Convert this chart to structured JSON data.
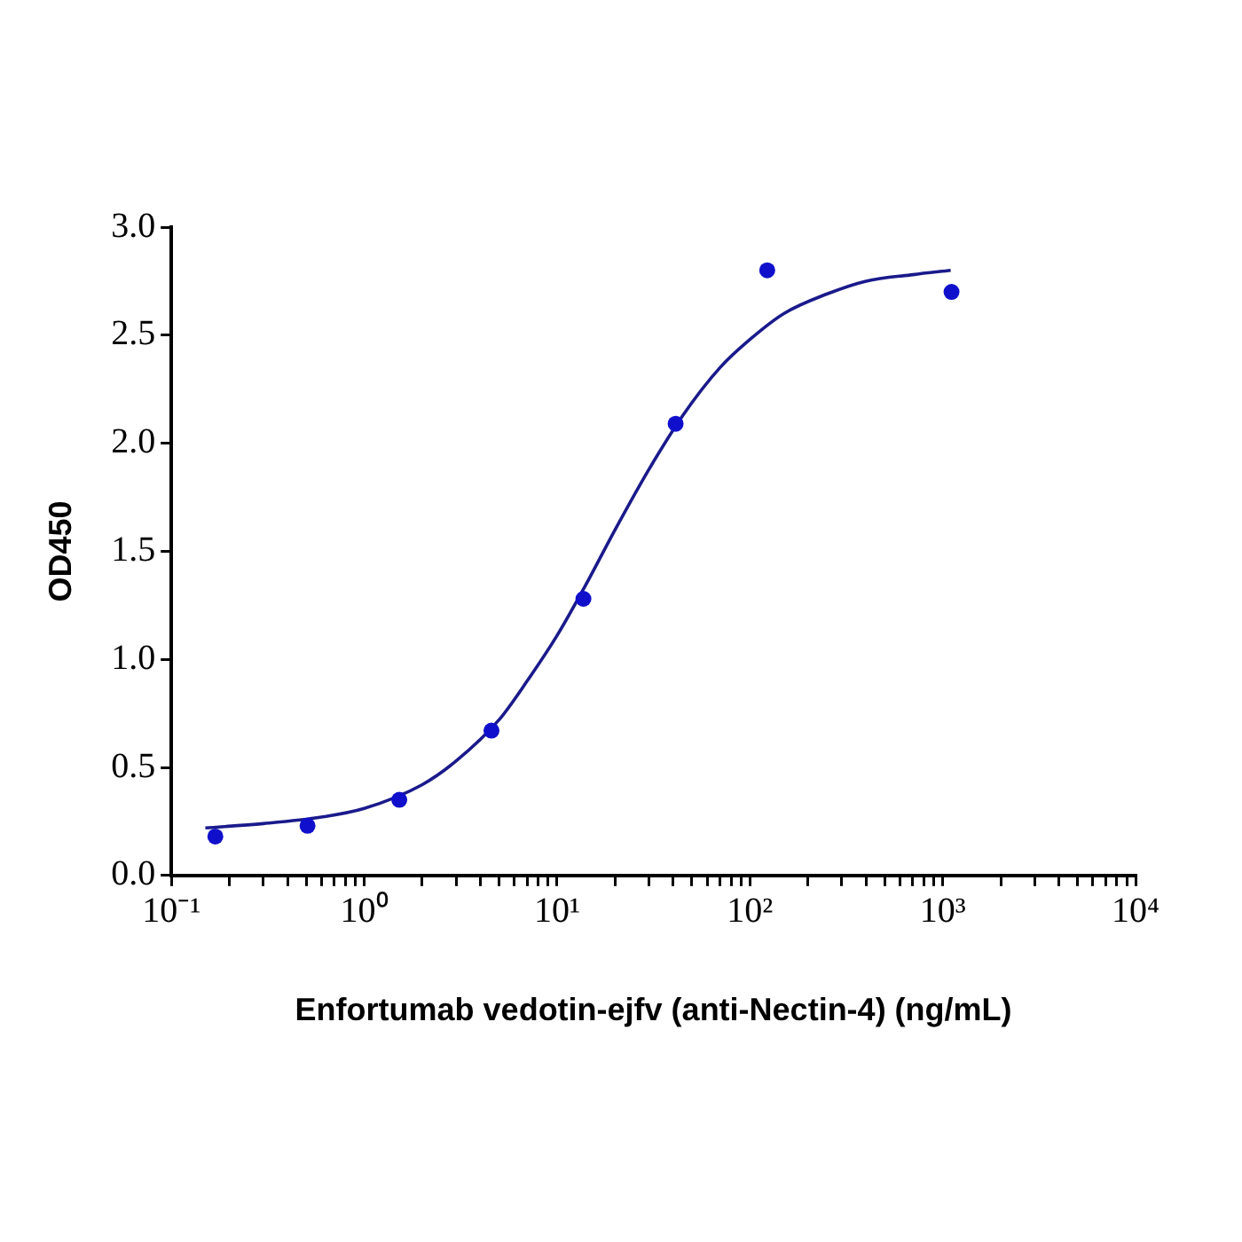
{
  "chart_data": {
    "type": "scatter",
    "xlabel": "Enfortumab vedotin-ejfv (anti-Nectin-4) (ng/mL)",
    "ylabel": "OD450",
    "log": "x",
    "marker": "circle",
    "xlim": [
      0.1,
      10000
    ],
    "xticks": [
      {
        "value": 0.1,
        "label": "10⁻¹"
      },
      {
        "value": 0.2,
        "label": null
      },
      {
        "value": 0.3,
        "label": null
      },
      {
        "value": 0.4,
        "label": null
      },
      {
        "value": 0.5,
        "label": null
      },
      {
        "value": 0.6,
        "label": null
      },
      {
        "value": 0.7,
        "label": null
      },
      {
        "value": 0.8,
        "label": null
      },
      {
        "value": 0.9,
        "label": null
      },
      {
        "value": 1,
        "label": "10⁰"
      },
      {
        "value": 2,
        "label": null
      },
      {
        "value": 3,
        "label": null
      },
      {
        "value": 4,
        "label": null
      },
      {
        "value": 5,
        "label": null
      },
      {
        "value": 6,
        "label": null
      },
      {
        "value": 7,
        "label": null
      },
      {
        "value": 8,
        "label": null
      },
      {
        "value": 9,
        "label": null
      },
      {
        "value": 10,
        "label": "10¹"
      },
      {
        "value": 20,
        "label": null
      },
      {
        "value": 30,
        "label": null
      },
      {
        "value": 40,
        "label": null
      },
      {
        "value": 50,
        "label": null
      },
      {
        "value": 60,
        "label": null
      },
      {
        "value": 70,
        "label": null
      },
      {
        "value": 80,
        "label": null
      },
      {
        "value": 90,
        "label": null
      },
      {
        "value": 100,
        "label": "10²"
      },
      {
        "value": 200,
        "label": null
      },
      {
        "value": 300,
        "label": null
      },
      {
        "value": 400,
        "label": null
      },
      {
        "value": 500,
        "label": null
      },
      {
        "value": 600,
        "label": null
      },
      {
        "value": 700,
        "label": null
      },
      {
        "value": 800,
        "label": null
      },
      {
        "value": 900,
        "label": null
      },
      {
        "value": 1000,
        "label": "10³"
      },
      {
        "value": 2000,
        "label": null
      },
      {
        "value": 3000,
        "label": null
      },
      {
        "value": 4000,
        "label": null
      },
      {
        "value": 5000,
        "label": null
      },
      {
        "value": 6000,
        "label": null
      },
      {
        "value": 7000,
        "label": null
      },
      {
        "value": 8000,
        "label": null
      },
      {
        "value": 9000,
        "label": null
      },
      {
        "value": 10000,
        "label": "10⁴"
      }
    ],
    "ylim": [
      0,
      3
    ],
    "yticks": [
      {
        "value": 0,
        "label": "0.0"
      },
      0.5,
      {
        "value": 1,
        "label": "1.0"
      },
      1.5,
      {
        "value": 2,
        "label": "2.0"
      },
      2.5,
      {
        "value": 3,
        "label": "3.0"
      }
    ],
    "series": [
      {
        "type": "scatter",
        "color": "#1010cc",
        "x": [
          0.169,
          0.508,
          1.52,
          4.57,
          13.7,
          41.2,
          123,
          1111
        ],
        "values": [
          0.18,
          0.23,
          0.35,
          0.67,
          1.28,
          2.09,
          2.8,
          2.7
        ]
      },
      {
        "type": "line",
        "color": "#1a1a8c",
        "marker": "none",
        "line_style": "solid",
        "x": [
          0.15,
          0.3,
          0.6,
          1,
          2,
          3,
          5,
          7,
          10,
          14,
          20,
          30,
          45,
          70,
          100,
          150,
          250,
          400,
          700,
          1100
        ],
        "values": [
          0.22,
          0.24,
          0.27,
          0.31,
          0.42,
          0.53,
          0.72,
          0.9,
          1.11,
          1.34,
          1.6,
          1.88,
          2.13,
          2.35,
          2.48,
          2.6,
          2.69,
          2.75,
          2.78,
          2.8
        ]
      }
    ]
  }
}
